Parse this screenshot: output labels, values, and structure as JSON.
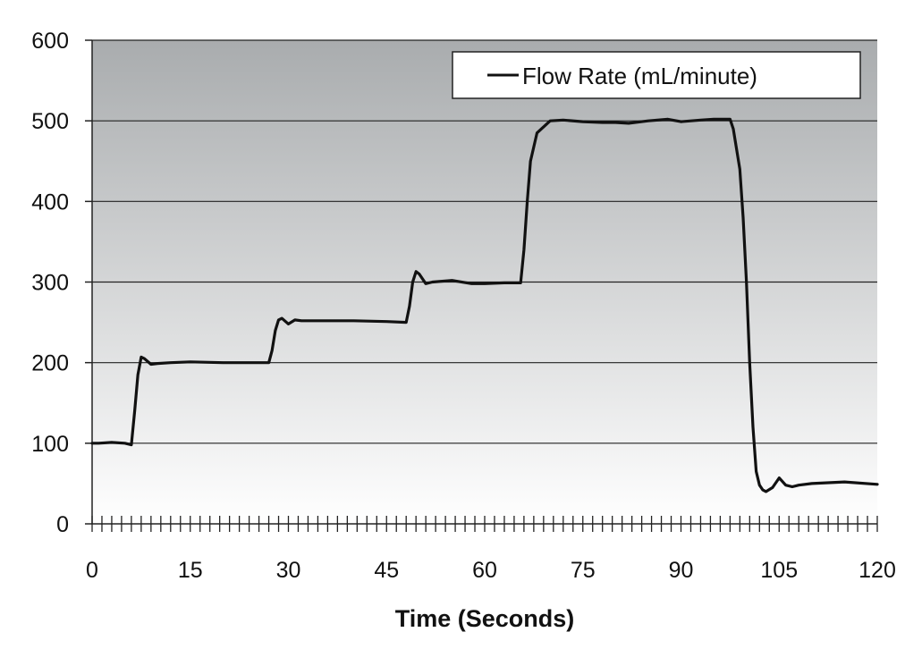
{
  "chart_data": {
    "type": "line",
    "title": "",
    "xlabel": "Time (Seconds)",
    "ylabel": "",
    "xlim": [
      0,
      120
    ],
    "ylim": [
      0,
      600
    ],
    "xticks": [
      "0",
      "15",
      "30",
      "45",
      "60",
      "75",
      "90",
      "105",
      "120"
    ],
    "yticks": [
      "0",
      "100",
      "200",
      "300",
      "400",
      "500",
      "600"
    ],
    "grid": "horizontal",
    "legend_position": "top-right",
    "colors": {
      "line": "#111111",
      "grid": "#222222",
      "bg_top": "#a9acae",
      "bg_bottom": "#ffffff"
    },
    "series": [
      {
        "name": "Flow Rate (mL/minute)",
        "x": [
          0,
          1,
          3,
          5,
          6,
          6.5,
          7,
          7.5,
          8,
          9,
          10,
          12,
          15,
          20,
          25,
          27,
          27.5,
          28,
          28.5,
          29,
          30,
          31,
          32,
          35,
          40,
          45,
          48,
          48.5,
          49,
          49.5,
          50,
          51,
          52,
          55,
          58,
          60,
          63,
          65.5,
          66,
          66.5,
          67,
          68,
          70,
          72,
          75,
          78,
          80,
          82,
          85,
          88,
          90,
          93,
          95,
          97.5,
          98,
          99,
          99.5,
          100,
          100.5,
          101,
          101.5,
          102,
          102.5,
          103,
          104,
          105,
          106,
          107,
          108,
          110,
          115,
          120
        ],
        "y": [
          100,
          100,
          101,
          100,
          98,
          140,
          185,
          207,
          205,
          198,
          199,
          200,
          201,
          200,
          200,
          200,
          215,
          240,
          253,
          255,
          248,
          253,
          252,
          252,
          252,
          251,
          250,
          270,
          300,
          313,
          310,
          298,
          300,
          302,
          298,
          298,
          299,
          299,
          340,
          400,
          450,
          485,
          500,
          501,
          499,
          498,
          498,
          497,
          500,
          502,
          499,
          501,
          502,
          502,
          490,
          440,
          380,
          300,
          200,
          120,
          65,
          48,
          42,
          40,
          45,
          57,
          48,
          46,
          48,
          50,
          52,
          49
        ]
      }
    ]
  }
}
